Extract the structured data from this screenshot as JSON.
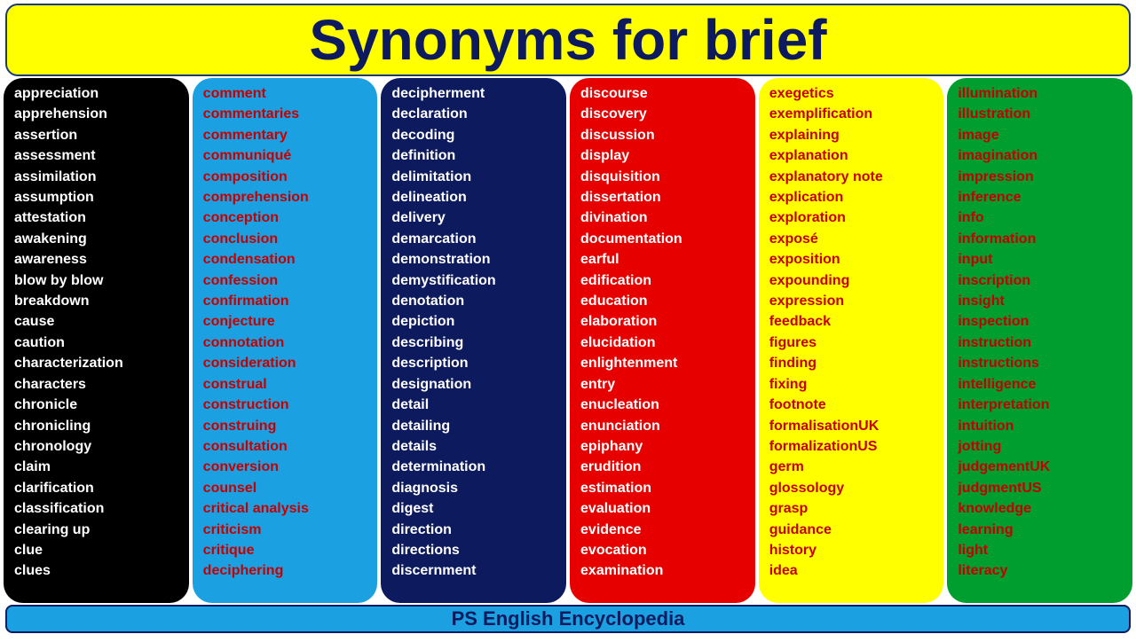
{
  "header": {
    "title": "Synonyms for  brief"
  },
  "footer": {
    "text": "PS English Encyclopedia"
  },
  "columns": [
    {
      "bg": "#000000",
      "text_color": "#ffffff",
      "items": [
        "appreciation",
        "apprehension",
        "assertion",
        "assessment",
        "assimilation",
        "assumption",
        "attestation",
        "awakening",
        "awareness",
        "blow by blow",
        "breakdown",
        "cause",
        "caution",
        "characterization",
        "characters",
        "chronicle",
        "chronicling",
        "chronology",
        "claim",
        "clarification",
        "classification",
        "clearing up",
        "clue",
        "clues"
      ]
    },
    {
      "bg": "#1ba1e2",
      "text_color": "#c60000",
      "items": [
        "comment",
        "commentaries",
        "commentary",
        "communiqué",
        "composition",
        "comprehension",
        "conception",
        "conclusion",
        "condensation",
        "confession",
        "confirmation",
        "conjecture",
        "connotation",
        "consideration",
        "construal",
        "construction",
        "construing",
        "consultation",
        "conversion",
        "counsel",
        "critical analysis",
        "criticism",
        "critique",
        "deciphering"
      ]
    },
    {
      "bg": "#0d1b5e",
      "text_color": "#ffffff",
      "items": [
        "decipherment",
        "declaration",
        "decoding",
        "definition",
        "delimitation",
        "delineation",
        "delivery",
        "demarcation",
        "demonstration",
        "demystification",
        "denotation",
        "depiction",
        "describing",
        "description",
        "designation",
        "detail",
        "detailing",
        "details",
        "determination",
        "diagnosis",
        "digest",
        "direction",
        "directions",
        "discernment"
      ]
    },
    {
      "bg": "#e60000",
      "text_color": "#ffffff",
      "items": [
        "discourse",
        "discovery",
        "discussion",
        "display",
        "disquisition",
        "dissertation",
        "divination",
        "documentation",
        "earful",
        "edification",
        "education",
        "elaboration",
        "elucidation",
        "enlightenment",
        "entry",
        "enucleation",
        "enunciation",
        "epiphany",
        "erudition",
        "estimation",
        "evaluation",
        "evidence",
        "evocation",
        "examination"
      ]
    },
    {
      "bg": "#ffff00",
      "text_color": "#c60000",
      "items": [
        "exegetics",
        "exemplification",
        "explaining",
        "explanation",
        "explanatory note",
        "explication",
        "exploration",
        "exposé",
        "exposition",
        "expounding",
        "expression",
        "feedback",
        "figures",
        "finding",
        "fixing",
        "footnote",
        "formalisationUK",
        "formalizationUS",
        "germ",
        "glossology",
        "grasp",
        "guidance",
        "history",
        "idea"
      ]
    },
    {
      "bg": "#009e2f",
      "text_color": "#c60000",
      "items": [
        "illumination",
        "illustration",
        "image",
        "imagination",
        "impression",
        "inference",
        "info",
        "information",
        "input",
        "inscription",
        "insight",
        "inspection",
        "instruction",
        "instructions",
        "intelligence",
        "interpretation",
        "intuition",
        "jotting",
        "judgementUK",
        "judgmentUS",
        "knowledge",
        "learning",
        "light",
        "literacy"
      ]
    }
  ]
}
